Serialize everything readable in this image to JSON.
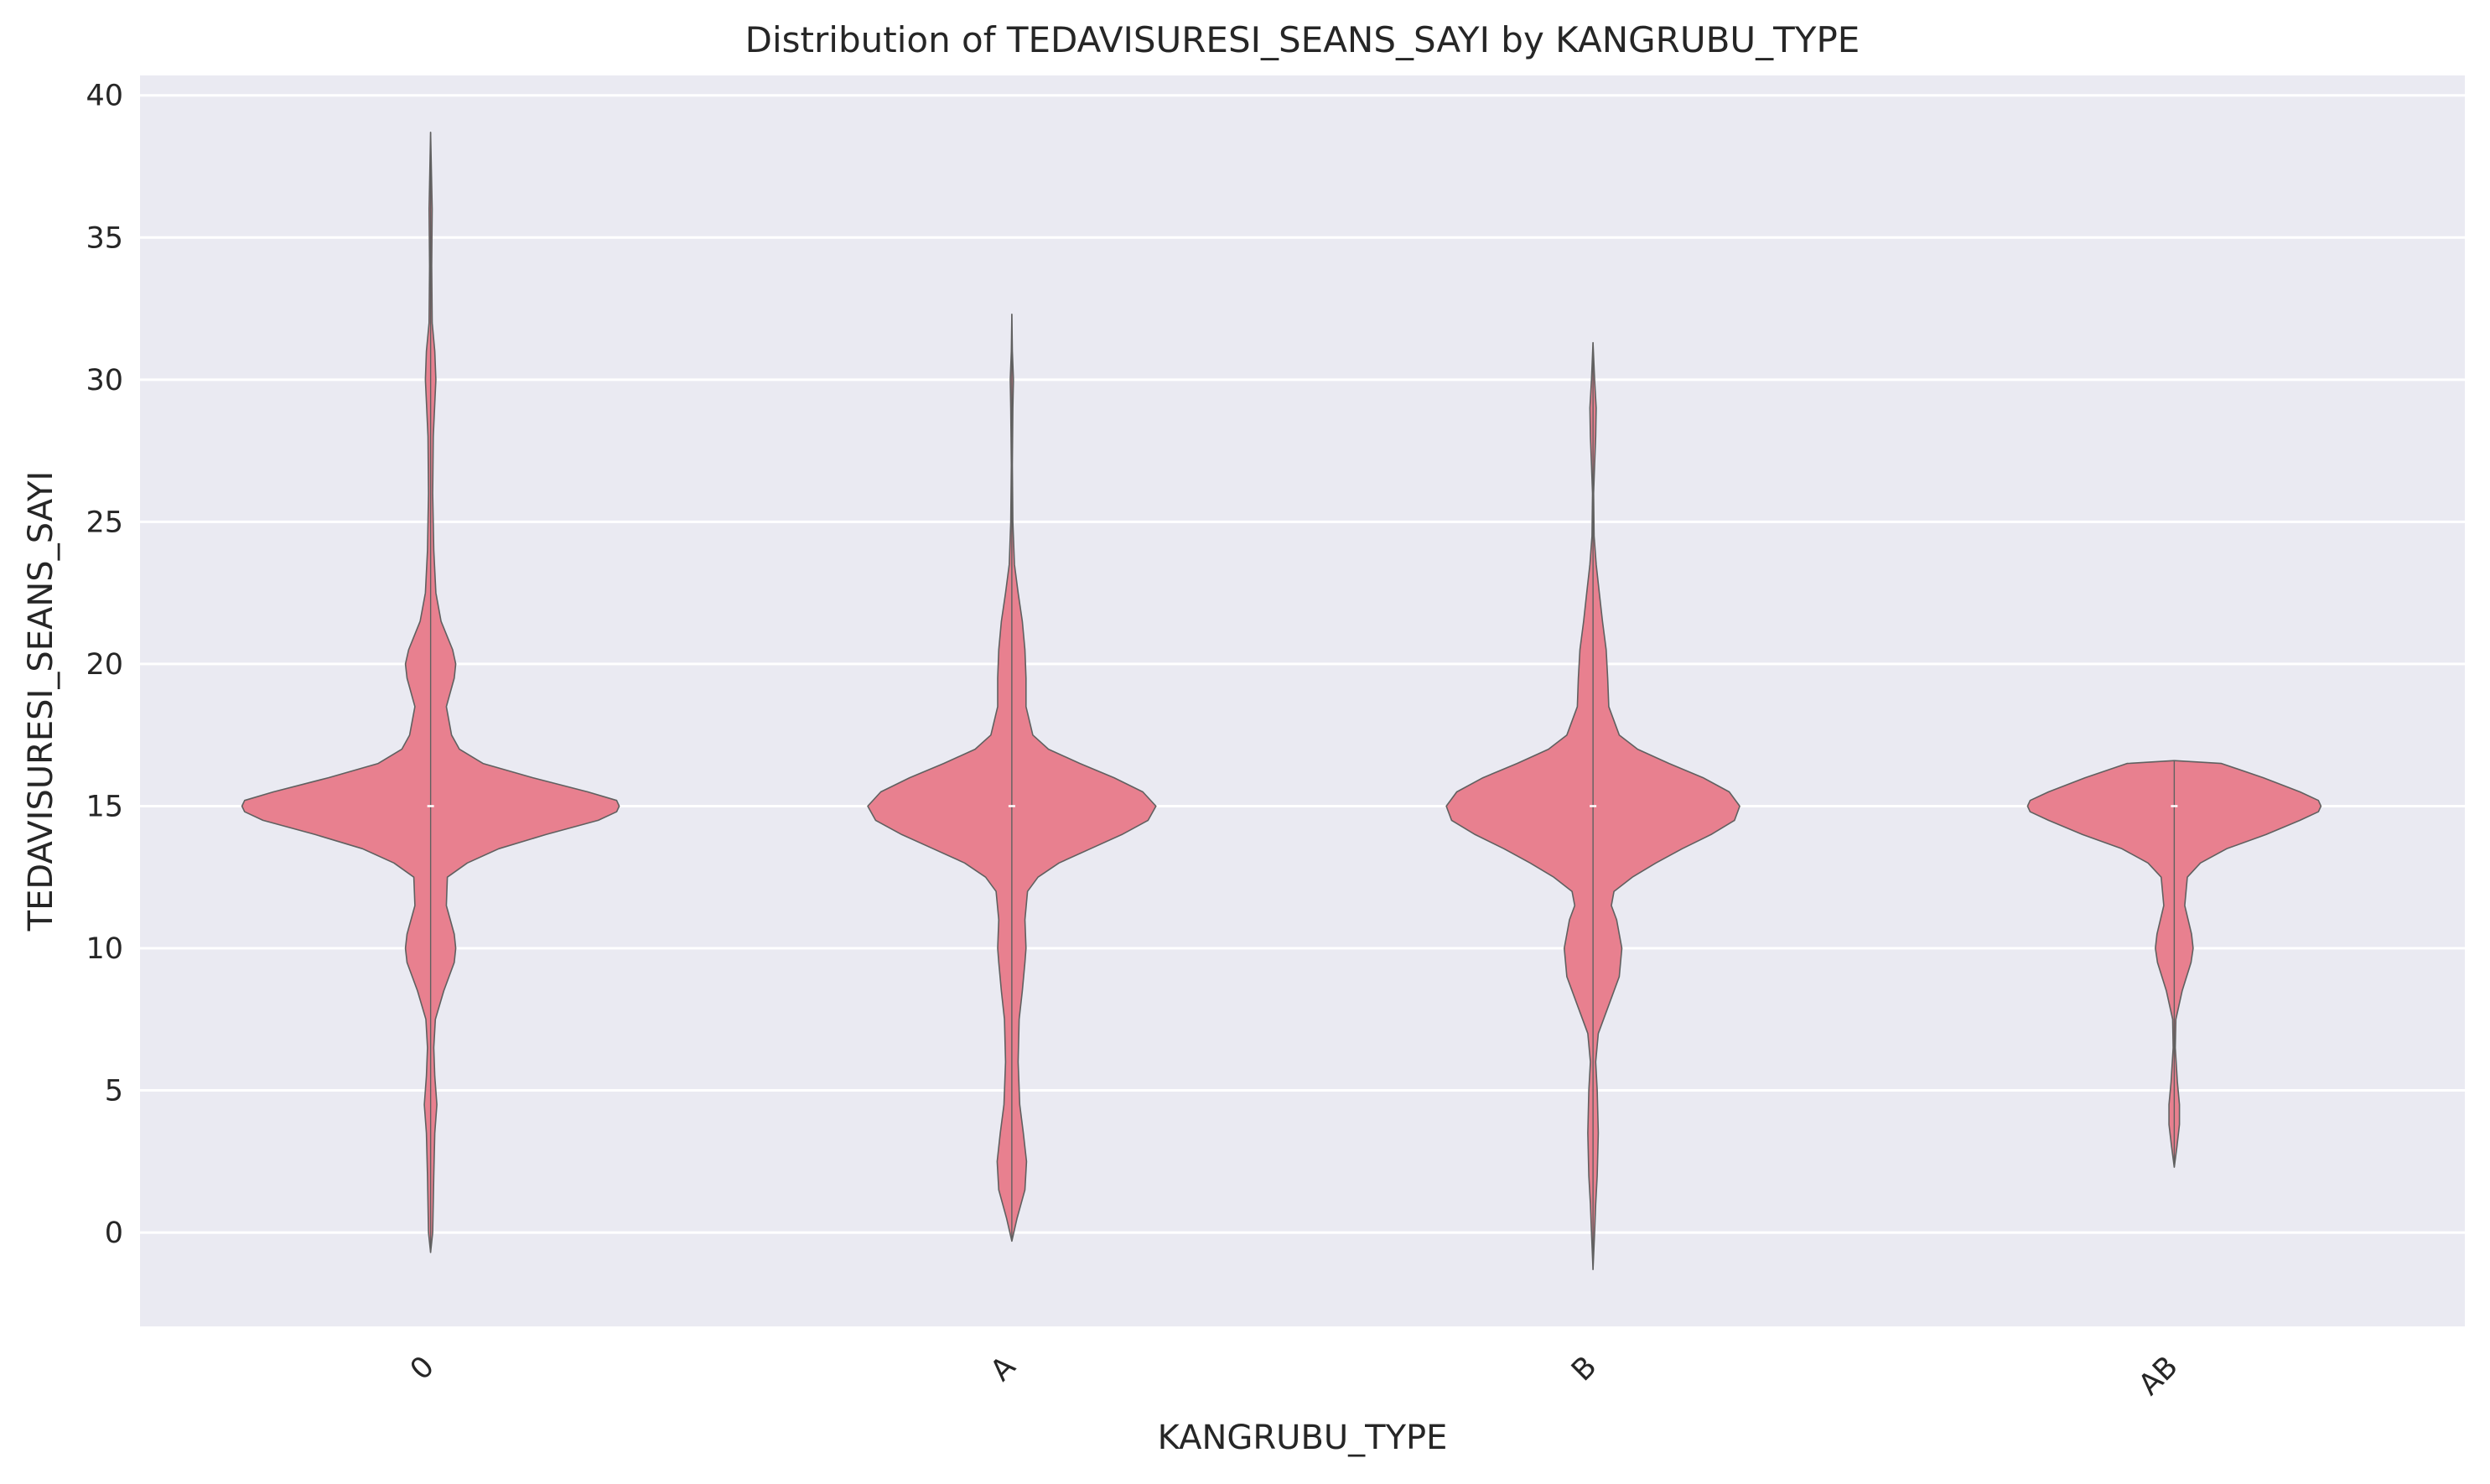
{
  "chart_data": {
    "type": "violin",
    "title": "Distribution of TEDAVISURESI_SEANS_SAYI by KANGRUBU_TYPE",
    "xlabel": "KANGRUBU_TYPE",
    "ylabel": "TEDAVISURESI_SEANS_SAYI",
    "categories": [
      "0",
      "A",
      "B",
      "AB"
    ],
    "ylim": [
      -3.3,
      40.7
    ],
    "yticks": [
      0,
      5,
      10,
      15,
      20,
      25,
      30,
      35,
      40
    ],
    "grid": true,
    "colors": {
      "fill": "#e8808f",
      "edge": "#606060",
      "background": "#eaeaf2",
      "grid": "#ffffff",
      "median": "#ffffff"
    },
    "series": [
      {
        "category": "0",
        "median": 15,
        "min": -0.7,
        "max": 38.7,
        "profile": [
          [
            -0.7,
            0.0
          ],
          [
            0,
            0.04
          ],
          [
            2,
            0.06
          ],
          [
            3.5,
            0.08
          ],
          [
            4.5,
            0.12
          ],
          [
            5.5,
            0.08
          ],
          [
            6.5,
            0.06
          ],
          [
            7.5,
            0.09
          ],
          [
            8.5,
            0.25
          ],
          [
            9.5,
            0.45
          ],
          [
            10,
            0.48
          ],
          [
            10.5,
            0.45
          ],
          [
            11.5,
            0.3
          ],
          [
            12.5,
            0.32
          ],
          [
            13,
            0.7
          ],
          [
            13.5,
            1.3
          ],
          [
            14,
            2.2
          ],
          [
            14.5,
            3.2
          ],
          [
            14.8,
            3.55
          ],
          [
            15,
            3.6
          ],
          [
            15.2,
            3.55
          ],
          [
            15.5,
            3.0
          ],
          [
            16,
            1.95
          ],
          [
            16.5,
            1.0
          ],
          [
            17,
            0.55
          ],
          [
            17.5,
            0.4
          ],
          [
            18.5,
            0.3
          ],
          [
            19.5,
            0.45
          ],
          [
            20,
            0.48
          ],
          [
            20.5,
            0.42
          ],
          [
            21.5,
            0.2
          ],
          [
            22.5,
            0.1
          ],
          [
            24,
            0.06
          ],
          [
            26,
            0.04
          ],
          [
            28,
            0.05
          ],
          [
            30,
            0.1
          ],
          [
            31,
            0.08
          ],
          [
            32,
            0.03
          ],
          [
            34,
            0.02
          ],
          [
            36,
            0.03
          ],
          [
            38.7,
            0.0
          ]
        ]
      },
      {
        "category": "A",
        "median": 15,
        "min": -0.3,
        "max": 32.3,
        "profile": [
          [
            -0.3,
            0.0
          ],
          [
            0.5,
            0.1
          ],
          [
            1.5,
            0.25
          ],
          [
            2.5,
            0.28
          ],
          [
            3.5,
            0.22
          ],
          [
            4.5,
            0.15
          ],
          [
            6,
            0.12
          ],
          [
            7.5,
            0.14
          ],
          [
            8.5,
            0.2
          ],
          [
            9.5,
            0.25
          ],
          [
            10,
            0.27
          ],
          [
            11,
            0.25
          ],
          [
            12,
            0.3
          ],
          [
            12.5,
            0.5
          ],
          [
            13,
            0.9
          ],
          [
            13.5,
            1.5
          ],
          [
            14,
            2.1
          ],
          [
            14.5,
            2.6
          ],
          [
            15,
            2.75
          ],
          [
            15.5,
            2.5
          ],
          [
            16,
            1.95
          ],
          [
            16.5,
            1.3
          ],
          [
            17,
            0.7
          ],
          [
            17.5,
            0.4
          ],
          [
            18.5,
            0.27
          ],
          [
            19.5,
            0.27
          ],
          [
            20.5,
            0.25
          ],
          [
            21.5,
            0.2
          ],
          [
            22.5,
            0.12
          ],
          [
            23.5,
            0.05
          ],
          [
            25,
            0.02
          ],
          [
            27,
            0.01
          ],
          [
            29,
            0.02
          ],
          [
            30,
            0.03
          ],
          [
            31,
            0.01
          ],
          [
            32.3,
            0.0
          ]
        ]
      },
      {
        "category": "B",
        "median": 15,
        "min": -1.3,
        "max": 31.3,
        "profile": [
          [
            -1.3,
            0.0
          ],
          [
            0,
            0.03
          ],
          [
            1,
            0.05
          ],
          [
            2,
            0.08
          ],
          [
            3.5,
            0.1
          ],
          [
            5,
            0.08
          ],
          [
            6,
            0.05
          ],
          [
            7,
            0.1
          ],
          [
            8,
            0.3
          ],
          [
            9,
            0.5
          ],
          [
            10,
            0.55
          ],
          [
            11,
            0.45
          ],
          [
            11.5,
            0.35
          ],
          [
            12,
            0.4
          ],
          [
            12.5,
            0.75
          ],
          [
            13,
            1.2
          ],
          [
            13.5,
            1.7
          ],
          [
            14,
            2.25
          ],
          [
            14.5,
            2.7
          ],
          [
            15,
            2.8
          ],
          [
            15.5,
            2.6
          ],
          [
            16,
            2.1
          ],
          [
            16.5,
            1.45
          ],
          [
            17,
            0.85
          ],
          [
            17.5,
            0.5
          ],
          [
            18.5,
            0.3
          ],
          [
            19.5,
            0.28
          ],
          [
            20.5,
            0.25
          ],
          [
            21.5,
            0.18
          ],
          [
            22.5,
            0.12
          ],
          [
            23.5,
            0.06
          ],
          [
            24.5,
            0.02
          ],
          [
            26,
            0.01
          ],
          [
            27,
            0.03
          ],
          [
            28,
            0.05
          ],
          [
            29,
            0.06
          ],
          [
            30,
            0.03
          ],
          [
            31.3,
            0.0
          ]
        ]
      },
      {
        "category": "AB",
        "median": 15,
        "min": 2.3,
        "max": 16.6,
        "profile": [
          [
            2.3,
            0.0
          ],
          [
            3,
            0.05
          ],
          [
            3.8,
            0.1
          ],
          [
            4.5,
            0.1
          ],
          [
            5.3,
            0.06
          ],
          [
            6.5,
            0.02
          ],
          [
            7.5,
            0.03
          ],
          [
            8.5,
            0.15
          ],
          [
            9.5,
            0.32
          ],
          [
            10,
            0.36
          ],
          [
            10.5,
            0.33
          ],
          [
            11.5,
            0.2
          ],
          [
            12.5,
            0.25
          ],
          [
            13,
            0.5
          ],
          [
            13.5,
            1.0
          ],
          [
            14,
            1.75
          ],
          [
            14.5,
            2.4
          ],
          [
            14.8,
            2.75
          ],
          [
            15,
            2.8
          ],
          [
            15.2,
            2.75
          ],
          [
            15.5,
            2.4
          ],
          [
            16,
            1.7
          ],
          [
            16.5,
            0.9
          ],
          [
            16.6,
            0.0
          ]
        ]
      }
    ]
  }
}
